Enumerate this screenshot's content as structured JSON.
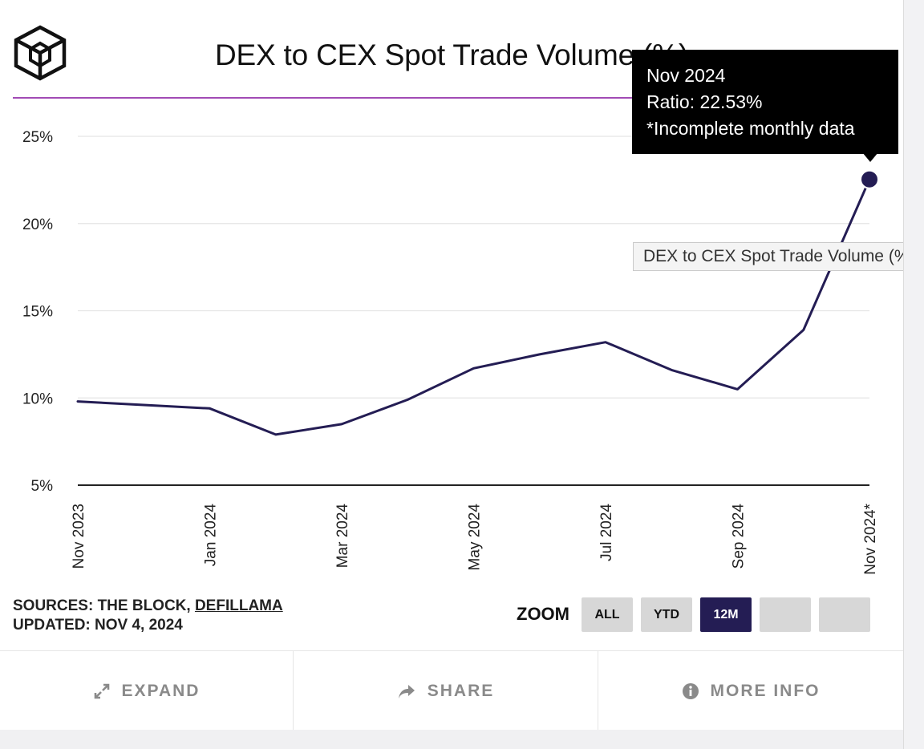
{
  "title": "DEX to CEX Spot Trade Volume (%)",
  "brand_logo": "cube-logo-icon",
  "colors": {
    "line": "#241d54",
    "title_rule": "#a24bb5",
    "grid": "#e5e5e5",
    "active_zoom": "#241d54"
  },
  "chart_data": {
    "type": "line",
    "title": "DEX to CEX Spot Trade Volume (%)",
    "xlabel": "",
    "ylabel": "",
    "ylim": [
      5,
      25
    ],
    "yticks": [
      "25%",
      "20%",
      "15%",
      "10%",
      "5%"
    ],
    "ytick_values": [
      25,
      20,
      15,
      10,
      5
    ],
    "x_tick_labels": [
      "Nov 2023",
      "Jan 2024",
      "Mar 2024",
      "May 2024",
      "Jul 2024",
      "Sep 2024",
      "Nov 2024*"
    ],
    "x_tick_indices": [
      0,
      2,
      4,
      6,
      8,
      10,
      12
    ],
    "grid": true,
    "series": [
      {
        "x": [
          "Nov 2023",
          "Dec 2023",
          "Jan 2024",
          "Feb 2024",
          "Mar 2024",
          "Apr 2024",
          "May 2024",
          "Jun 2024",
          "Jul 2024",
          "Aug 2024",
          "Sep 2024",
          "Oct 2024",
          "Nov 2024"
        ],
        "values": [
          9.8,
          9.6,
          9.4,
          7.9,
          8.5,
          9.9,
          11.7,
          12.5,
          13.2,
          11.6,
          10.5,
          13.9,
          22.53
        ]
      }
    ],
    "highlight_index": 12
  },
  "tooltip": {
    "month": "Nov 2024",
    "ratio": "Ratio: 22.53%",
    "note": "*Incomplete monthly data"
  },
  "hover_series_label": "DEX to CEX Spot Trade Volume (%)",
  "sources": {
    "prefix": "SOURCES: THE BLOCK, ",
    "link": "DEFILLAMA",
    "updated": "UPDATED: NOV 4, 2024"
  },
  "zoom": {
    "label": "ZOOM",
    "buttons": [
      "ALL",
      "YTD",
      "12M",
      "",
      ""
    ],
    "active": "12M"
  },
  "footer": {
    "expand": "EXPAND",
    "expand_icon": "expand-arrows-icon",
    "share": "SHARE",
    "share_icon": "share-arrow-icon",
    "more_info": "MORE INFO",
    "more_info_icon": "info-circle-icon"
  }
}
